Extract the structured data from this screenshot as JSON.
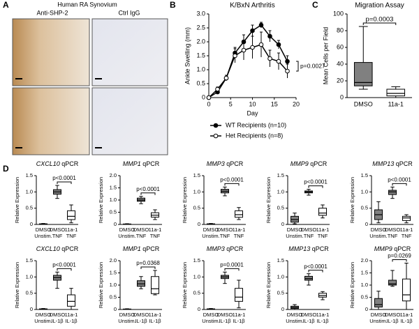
{
  "panels": [
    "A",
    "B",
    "C",
    "D"
  ],
  "panel_a": {
    "title": "Human RA Synovium",
    "columns": [
      "Anti-SHP-2",
      "Ctrl IgG"
    ]
  },
  "chart_data": [
    {
      "type": "line",
      "title": "K/BxN Arthritis",
      "x_label": "Day",
      "y_label": "Ankle Swelling (mm)",
      "x": [
        0,
        2,
        4,
        6,
        8,
        10,
        12,
        14,
        16,
        18
      ],
      "xlim": [
        0,
        20
      ],
      "xticks": [
        0,
        5,
        10,
        15,
        20
      ],
      "ylim": [
        0,
        3
      ],
      "yticks": [
        0,
        0.5,
        {
          "value": 1,
          "label": "1.0"
        },
        1.5,
        {
          "value": 2,
          "label": "2.0"
        },
        2.5,
        {
          "value": 3,
          "label": "3.0"
        }
      ],
      "series": [
        {
          "name": "WT Recipients (n=10)",
          "color": "#000000",
          "marker_fill": "#000000",
          "values": [
            0,
            0.2,
            0.7,
            1.6,
            2.0,
            2.4,
            2.6,
            2.2,
            1.9,
            1.3
          ],
          "errors": [
            0,
            0.05,
            0.1,
            0.2,
            0.25,
            0.2,
            0.1,
            0.2,
            0.15,
            0.2
          ]
        },
        {
          "name": "Het Recipients (n=8)",
          "color": "#000000",
          "marker_fill": "#ffffff",
          "values": [
            0,
            0.3,
            0.7,
            1.5,
            1.7,
            1.8,
            1.9,
            1.4,
            1.3,
            0.95
          ],
          "errors": [
            0,
            0.08,
            0.1,
            0.25,
            0.35,
            0.4,
            0.45,
            0.3,
            0.3,
            0.25
          ]
        }
      ],
      "annotation": "p=0.0027"
    },
    {
      "type": "box",
      "title": "Migration Assay",
      "y_label": "Mean Cells per Field",
      "categories": [
        "DMSO",
        "11a-1"
      ],
      "boxes": [
        [
          10,
          14,
          18,
          42,
          85
        ],
        [
          0,
          2,
          5,
          10,
          13
        ]
      ],
      "colors": [
        "#808080",
        "#ffffff"
      ],
      "ylim": [
        0,
        100
      ],
      "yticks": [
        0,
        20,
        40,
        60,
        80,
        100
      ],
      "annotation": "p=0.0003"
    },
    {
      "type": "box",
      "gene": "CXCL10",
      "title": "qPCR",
      "y_label": "Relative Expression",
      "categories": [
        [
          "DMSO",
          "Unstim."
        ],
        [
          "DMSO",
          "TNF"
        ],
        [
          "11a-1",
          "TNF"
        ]
      ],
      "boxes": [
        [
          0,
          0,
          0.01,
          0.02,
          0.03
        ],
        [
          0.8,
          0.93,
          1.0,
          1.07,
          1.2
        ],
        [
          0.05,
          0.15,
          0.25,
          0.42,
          0.6
        ]
      ],
      "colors": [
        "#808080",
        "#808080",
        "#ffffff"
      ],
      "ylim": [
        0,
        1.5
      ],
      "yticks": [
        0,
        0.5,
        {
          "value": 1,
          "label": "1.0"
        },
        1.5
      ],
      "annotation": "p<0.0001"
    },
    {
      "type": "box",
      "gene": "MMP1",
      "title": "qPCR",
      "y_label": "Relative Expression",
      "categories": [
        [
          "DMSO",
          "Unstim."
        ],
        [
          "DMSO",
          "TNF"
        ],
        [
          "11a-1",
          "TNF"
        ]
      ],
      "boxes": [
        [
          0,
          0,
          0.01,
          0.02,
          0.03
        ],
        [
          0.85,
          0.95,
          1.0,
          1.08,
          1.15
        ],
        [
          0.2,
          0.3,
          0.38,
          0.48,
          0.6
        ]
      ],
      "colors": [
        "#808080",
        "#808080",
        "#ffffff"
      ],
      "ylim": [
        0,
        2
      ],
      "yticks": [
        0,
        0.5,
        {
          "value": 1,
          "label": "1.0"
        },
        1.5,
        {
          "value": 2,
          "label": "2.0"
        }
      ],
      "annotation": "p<0.0001"
    },
    {
      "type": "box",
      "gene": "MMP3",
      "title": "qPCR",
      "y_label": "Relative Expression",
      "categories": [
        [
          "DMSO",
          "Unstim."
        ],
        [
          "DMSO",
          "TNF"
        ],
        [
          "11a-1",
          "TNF"
        ]
      ],
      "boxes": [
        [
          0,
          0,
          0.01,
          0.02,
          0.03
        ],
        [
          0.88,
          0.97,
          1.02,
          1.08,
          1.15
        ],
        [
          0.15,
          0.22,
          0.3,
          0.42,
          0.52
        ]
      ],
      "colors": [
        "#808080",
        "#808080",
        "#ffffff"
      ],
      "ylim": [
        0,
        1.5
      ],
      "yticks": [
        0,
        0.5,
        {
          "value": 1,
          "label": "1.0"
        },
        1.5
      ],
      "annotation": "p<0.0001"
    },
    {
      "type": "box",
      "gene": "MMP9",
      "title": "qPCR",
      "y_label": "Relative Expression",
      "categories": [
        [
          "DMSO",
          "Unstim."
        ],
        [
          "DMSO",
          "TNF"
        ],
        [
          "11a-1",
          "TNF"
        ]
      ],
      "boxes": [
        [
          0.02,
          0.07,
          0.15,
          0.25,
          0.35
        ],
        [
          0.9,
          0.97,
          1.0,
          1.03,
          1.08
        ],
        [
          0.2,
          0.28,
          0.35,
          0.5,
          0.6
        ]
      ],
      "colors": [
        "#808080",
        "#808080",
        "#ffffff"
      ],
      "ylim": [
        0,
        1.5
      ],
      "yticks": [
        0,
        0.5,
        {
          "value": 1,
          "label": "1.0"
        },
        1.5
      ],
      "annotation": "p<0.0001"
    },
    {
      "type": "box",
      "gene": "MMP13",
      "title": "qPCR",
      "y_label": "Relative Expression",
      "categories": [
        [
          "DMSO",
          "Unstim."
        ],
        [
          "DMSO",
          "TNF"
        ],
        [
          "11a-1",
          "TNF"
        ]
      ],
      "boxes": [
        [
          0.05,
          0.15,
          0.3,
          0.45,
          0.7
        ],
        [
          0.8,
          0.92,
          1.0,
          1.05,
          1.15
        ],
        [
          0.05,
          0.12,
          0.2,
          0.25,
          0.3
        ]
      ],
      "colors": [
        "#808080",
        "#808080",
        "#ffffff"
      ],
      "ylim": [
        0,
        1.5
      ],
      "yticks": [
        0,
        0.5,
        {
          "value": 1,
          "label": "1.0"
        },
        1.5
      ],
      "annotation": "p<0.0001"
    },
    {
      "type": "box",
      "gene": "CXCL10",
      "title": "qPCR",
      "y_label": "Relative Expression",
      "categories": [
        [
          "DMSO",
          "Unstim."
        ],
        [
          "DMSO",
          "IL-1β"
        ],
        [
          "11a-1",
          "IL-1β"
        ]
      ],
      "boxes": [
        [
          0,
          0,
          0.01,
          0.02,
          0.03
        ],
        [
          0.65,
          0.9,
          0.98,
          1.05,
          1.15
        ],
        [
          0,
          0.1,
          0.25,
          0.45,
          0.65
        ]
      ],
      "colors": [
        "#808080",
        "#808080",
        "#ffffff"
      ],
      "ylim": [
        0,
        1.5
      ],
      "yticks": [
        0,
        0.5,
        {
          "value": 1,
          "label": "1.0"
        },
        1.5
      ],
      "annotation": "p<0.0001"
    },
    {
      "type": "box",
      "gene": "MMP1",
      "title": "qPCR",
      "y_label": "Relative Expression",
      "categories": [
        [
          "DMSO",
          "Unstim."
        ],
        [
          "DMSO",
          "IL-1β"
        ],
        [
          "11a-1",
          "IL-1β"
        ]
      ],
      "boxes": [
        [
          0,
          0,
          0.01,
          0.02,
          0.03
        ],
        [
          0.85,
          0.95,
          1.05,
          1.18,
          1.35
        ],
        [
          0.6,
          0.65,
          0.85,
          1.35,
          1.6
        ]
      ],
      "colors": [
        "#808080",
        "#808080",
        "#ffffff"
      ],
      "ylim": [
        0,
        2
      ],
      "yticks": [
        0,
        0.5,
        {
          "value": 1,
          "label": "1.0"
        },
        1.5,
        {
          "value": 2,
          "label": "2.0"
        }
      ],
      "annotation": "p=0.0368"
    },
    {
      "type": "box",
      "gene": "MMP3",
      "title": "qPCR",
      "y_label": "Relative Expression",
      "categories": [
        [
          "DMSO",
          "Unstim."
        ],
        [
          "DMSO",
          "IL-1β"
        ],
        [
          "11a-1",
          "IL-1β"
        ]
      ],
      "boxes": [
        [
          0,
          0,
          0.01,
          0.02,
          0.03
        ],
        [
          0.8,
          0.95,
          1.0,
          1.05,
          1.15
        ],
        [
          0.05,
          0.25,
          0.38,
          0.65,
          0.9
        ]
      ],
      "colors": [
        "#808080",
        "#808080",
        "#ffffff"
      ],
      "ylim": [
        0,
        1.5
      ],
      "yticks": [
        0,
        0.5,
        {
          "value": 1,
          "label": "1.0"
        },
        1.5
      ],
      "annotation": "p=0.0001"
    },
    {
      "type": "box",
      "gene": "MMP13",
      "title": "qPCR",
      "y_label": "Relative Expression",
      "categories": [
        [
          "DMSO",
          "Unstim."
        ],
        [
          "DMSO",
          "IL-1β"
        ],
        [
          "11a-1",
          "IL-1β"
        ]
      ],
      "boxes": [
        [
          0,
          0.03,
          0.06,
          0.1,
          0.15
        ],
        [
          0.75,
          0.9,
          0.95,
          1.02,
          1.1
        ],
        [
          0.3,
          0.38,
          0.43,
          0.5,
          0.55
        ]
      ],
      "colors": [
        "#808080",
        "#808080",
        "#ffffff"
      ],
      "ylim": [
        0,
        1.5
      ],
      "yticks": [
        0,
        0.5,
        {
          "value": 1,
          "label": "1.0"
        },
        1.5
      ],
      "annotation": "p<0.0001"
    },
    {
      "type": "box",
      "gene": "MMP9",
      "title": "qPCR",
      "y_label": "Relative Expression",
      "categories": [
        [
          "DMSO",
          "Unstim."
        ],
        [
          "DMSO",
          "IL-1β"
        ],
        [
          "11a-1",
          "IL-1β"
        ]
      ],
      "boxes": [
        [
          0,
          0.1,
          0.2,
          0.45,
          0.75
        ],
        [
          0.95,
          1.0,
          1.05,
          1.2,
          1.6
        ],
        [
          0,
          0.35,
          0.6,
          1.25,
          1.9
        ]
      ],
      "colors": [
        "#808080",
        "#808080",
        "#ffffff"
      ],
      "ylim": [
        0,
        2
      ],
      "yticks": [
        0,
        0.5,
        {
          "value": 1,
          "label": "1.0"
        },
        1.5,
        {
          "value": 2,
          "label": "2.0"
        }
      ],
      "annotation": "p=0.0269"
    }
  ]
}
